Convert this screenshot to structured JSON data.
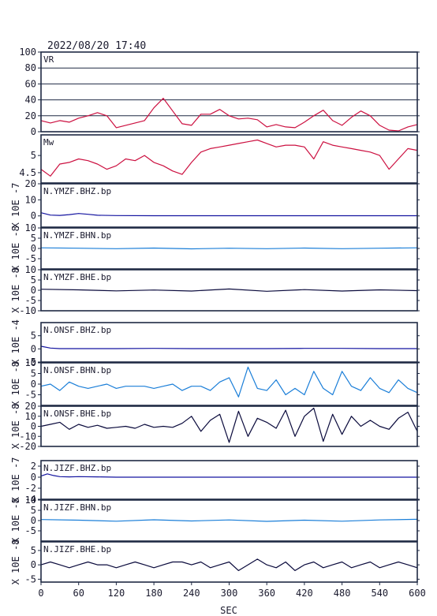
{
  "header": {
    "timestamp": "2022/08/20 17:40"
  },
  "xaxis": {
    "label": "SEC",
    "ticks": [
      0,
      60,
      120,
      180,
      240,
      300,
      360,
      420,
      480,
      540,
      600
    ],
    "range": [
      0,
      600
    ]
  },
  "colors": {
    "frame": "#1f2a44",
    "vr": "#cc1040",
    "mw": "#cc1040",
    "bhz": "#1414a0",
    "bhn": "#1a7ed8",
    "bhe": "#0a0a3c"
  },
  "chart_data": [
    {
      "id": "vr",
      "type": "line",
      "label": "VR",
      "ylim": [
        0,
        100
      ],
      "yticks": [
        0,
        20,
        40,
        60,
        80,
        100
      ],
      "grid": true,
      "x": [
        0,
        15,
        30,
        45,
        60,
        75,
        90,
        105,
        120,
        135,
        150,
        165,
        180,
        195,
        210,
        225,
        240,
        255,
        270,
        285,
        300,
        315,
        330,
        345,
        360,
        375,
        390,
        405,
        420,
        435,
        450,
        465,
        480,
        495,
        510,
        525,
        540,
        555,
        570,
        585,
        600
      ],
      "values": [
        14,
        11,
        14,
        12,
        17,
        20,
        24,
        20,
        5,
        8,
        11,
        14,
        30,
        42,
        26,
        10,
        8,
        22,
        22,
        28,
        20,
        16,
        17,
        15,
        6,
        9,
        6,
        5,
        12,
        20,
        27,
        14,
        8,
        18,
        26,
        20,
        8,
        2,
        1,
        6,
        9
      ]
    },
    {
      "id": "mw",
      "type": "line",
      "label": "Mw",
      "ylim": [
        4.2,
        5.6
      ],
      "yticks": [
        4.5,
        5.0
      ],
      "x": [
        0,
        15,
        30,
        45,
        60,
        75,
        90,
        105,
        120,
        135,
        150,
        165,
        180,
        195,
        210,
        225,
        240,
        255,
        270,
        285,
        300,
        315,
        330,
        345,
        360,
        375,
        390,
        405,
        420,
        435,
        450,
        465,
        480,
        495,
        510,
        525,
        540,
        555,
        570,
        585,
        600
      ],
      "values": [
        4.6,
        4.4,
        4.75,
        4.8,
        4.9,
        4.85,
        4.75,
        4.6,
        4.7,
        4.9,
        4.85,
        5.0,
        4.8,
        4.7,
        4.55,
        4.45,
        4.8,
        5.1,
        5.2,
        5.25,
        5.3,
        5.35,
        5.4,
        5.45,
        5.35,
        5.25,
        5.3,
        5.3,
        5.25,
        4.9,
        5.4,
        5.3,
        5.25,
        5.2,
        5.15,
        5.1,
        5.0,
        4.6,
        4.9,
        5.2,
        5.15
      ]
    },
    {
      "id": "ymzf-bhz",
      "type": "line",
      "label": "N.YMZF.BHZ.bp",
      "scale": "X 10E -7",
      "color_key": "bhz",
      "ylim": [
        -7,
        20
      ],
      "yticks": [
        20,
        10,
        0
      ],
      "x": [
        0,
        15,
        30,
        45,
        60,
        75,
        90,
        120,
        180,
        240,
        300,
        360,
        420,
        480,
        540,
        600
      ],
      "values": [
        2,
        0.5,
        0.3,
        0.8,
        1.5,
        1.0,
        0.4,
        0.2,
        0.1,
        0.1,
        0.1,
        0.1,
        0.1,
        0.1,
        0.1,
        0.1
      ]
    },
    {
      "id": "ymzf-bhn",
      "type": "line",
      "label": "N.YMZF.BHN.bp",
      "scale": "X 10E -8",
      "color_key": "bhn",
      "ylim": [
        -10,
        10
      ],
      "yticks": [
        10,
        5,
        0,
        -5
      ],
      "x": [
        0,
        60,
        120,
        180,
        240,
        300,
        360,
        420,
        480,
        540,
        600
      ],
      "values": [
        0.3,
        0.1,
        -0.1,
        0.2,
        -0.2,
        0.1,
        -0.1,
        0.2,
        -0.1,
        0.1,
        0.3
      ]
    },
    {
      "id": "ymzf-bhe",
      "type": "line",
      "label": "N.YMZF.BHE.bp",
      "scale": "X 10E -8",
      "color_key": "bhe",
      "ylim": [
        -10,
        10
      ],
      "yticks": [
        10,
        5,
        0,
        -5,
        -10
      ],
      "x": [
        0,
        60,
        120,
        180,
        240,
        300,
        360,
        420,
        480,
        540,
        600
      ],
      "values": [
        0.5,
        0.2,
        -0.3,
        0.1,
        -0.4,
        0.6,
        -0.5,
        0.3,
        -0.4,
        0.2,
        -0.2
      ]
    },
    {
      "id": "onsf-bhz",
      "type": "line",
      "label": "N.ONSF.BHZ.bp",
      "scale": "X 10E -4",
      "color_key": "bhz",
      "ylim": [
        -5,
        10
      ],
      "yticks": [
        5,
        0,
        -5
      ],
      "x": [
        0,
        15,
        30,
        60,
        120,
        180,
        240,
        300,
        360,
        420,
        480,
        540,
        600
      ],
      "values": [
        1,
        0.3,
        0.1,
        0.1,
        0.1,
        0.2,
        0.1,
        0.1,
        0.1,
        0.2,
        0.2,
        0.1,
        0.1
      ]
    },
    {
      "id": "onsf-bhn",
      "type": "line",
      "label": "N.ONSF.BHN.bp",
      "scale": "X 10E -8",
      "color_key": "bhn",
      "ylim": [
        -10,
        10
      ],
      "yticks": [
        10,
        5,
        0,
        -5
      ],
      "x": [
        0,
        15,
        30,
        45,
        60,
        75,
        90,
        105,
        120,
        135,
        150,
        165,
        180,
        195,
        210,
        225,
        240,
        255,
        270,
        285,
        300,
        315,
        330,
        345,
        360,
        375,
        390,
        405,
        420,
        435,
        450,
        465,
        480,
        495,
        510,
        525,
        540,
        555,
        570,
        585,
        600
      ],
      "values": [
        -1,
        0,
        -3,
        1,
        -1,
        -2,
        -1,
        0,
        -2,
        -1,
        -1,
        -1,
        -2,
        -1,
        0,
        -3,
        -1,
        -1,
        -3,
        1,
        3,
        -6,
        8,
        -2,
        -3,
        2,
        -5,
        -2,
        -5,
        6,
        -2,
        -5,
        6,
        -1,
        -3,
        3,
        -2,
        -4,
        2,
        -2,
        -4
      ]
    },
    {
      "id": "onsf-bhe",
      "type": "line",
      "label": "N.ONSF.BHE.bp",
      "scale": "X 10E -8",
      "color_key": "bhe",
      "ylim": [
        -20,
        20
      ],
      "yticks": [
        20,
        10,
        0,
        -10,
        -20
      ],
      "x": [
        0,
        15,
        30,
        45,
        60,
        75,
        90,
        105,
        120,
        135,
        150,
        165,
        180,
        195,
        210,
        225,
        240,
        255,
        270,
        285,
        300,
        315,
        330,
        345,
        360,
        375,
        390,
        405,
        420,
        435,
        450,
        465,
        480,
        495,
        510,
        525,
        540,
        555,
        570,
        585,
        600
      ],
      "values": [
        0,
        2,
        4,
        -3,
        2,
        -1,
        1,
        -2,
        -1,
        0,
        -2,
        2,
        -1,
        0,
        -1,
        3,
        10,
        -5,
        6,
        12,
        -16,
        15,
        -10,
        8,
        4,
        -2,
        16,
        -10,
        10,
        18,
        -15,
        12,
        -8,
        10,
        0,
        6,
        0,
        -3,
        8,
        14,
        -5
      ]
    },
    {
      "id": "jizf-bhz",
      "type": "line",
      "label": "N.JIZF.BHZ.bp",
      "scale": "X 10E -7",
      "color_key": "bhz",
      "ylim": [
        -4,
        3
      ],
      "yticks": [
        2,
        0,
        -2,
        -4
      ],
      "x": [
        0,
        10,
        20,
        30,
        45,
        60,
        90,
        120,
        180,
        240,
        300,
        360,
        420,
        480,
        540,
        600
      ],
      "values": [
        0.2,
        0.6,
        0.3,
        0.1,
        0.05,
        0.1,
        0.05,
        0,
        0,
        0,
        0,
        0,
        0,
        0,
        0,
        0
      ]
    },
    {
      "id": "jizf-bhn",
      "type": "line",
      "label": "N.JIZF.BHN.bp",
      "scale": "X 10E -8",
      "color_key": "bhn",
      "ylim": [
        -10,
        10
      ],
      "yticks": [
        10,
        5,
        0,
        -5
      ],
      "x": [
        0,
        60,
        120,
        180,
        240,
        300,
        360,
        420,
        480,
        540,
        600
      ],
      "values": [
        0.5,
        0.2,
        -0.3,
        0.4,
        -0.2,
        0.3,
        -0.4,
        0.2,
        -0.3,
        0.3,
        0.6
      ]
    },
    {
      "id": "jizf-bhe",
      "type": "line",
      "label": "N.JIZF.BHE.bp",
      "scale": "X 10E -8",
      "color_key": "bhe",
      "ylim": [
        -6,
        8
      ],
      "yticks": [
        5,
        0,
        -5
      ],
      "x": [
        0,
        15,
        30,
        45,
        60,
        75,
        90,
        105,
        120,
        135,
        150,
        165,
        180,
        195,
        210,
        225,
        240,
        255,
        270,
        285,
        300,
        315,
        330,
        345,
        360,
        375,
        390,
        405,
        420,
        435,
        450,
        465,
        480,
        495,
        510,
        525,
        540,
        555,
        570,
        585,
        600
      ],
      "values": [
        0,
        1,
        0,
        -1,
        0,
        1,
        0,
        0,
        -1,
        0,
        1,
        0,
        -1,
        0,
        1,
        1,
        0,
        1,
        -1,
        0,
        1,
        -2,
        0,
        2,
        0,
        -1,
        1,
        -2,
        0,
        1,
        -1,
        0,
        1,
        -1,
        0,
        1,
        -1,
        0,
        1,
        0,
        -1
      ]
    }
  ]
}
